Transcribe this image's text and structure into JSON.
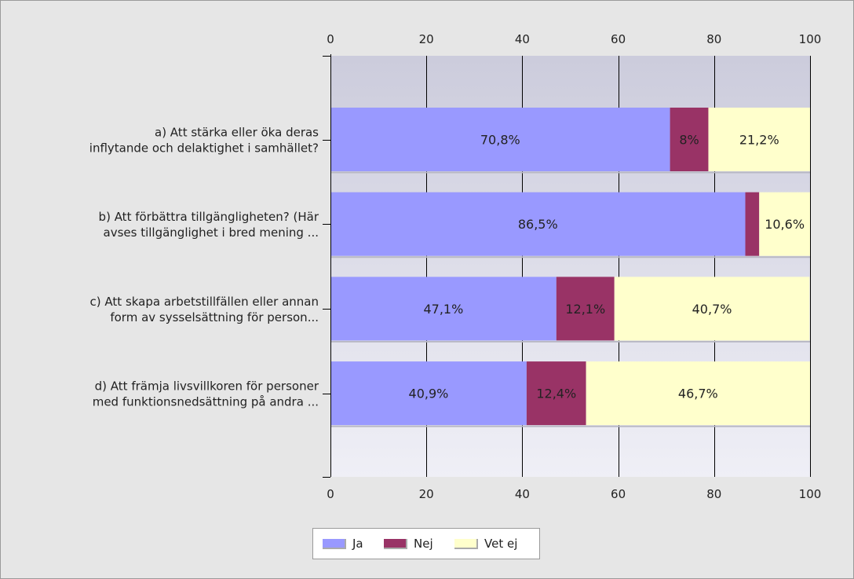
{
  "chart_data": {
    "type": "bar",
    "orientation": "horizontal",
    "stacked": true,
    "categories": [
      [
        "a) Att stärka eller öka deras",
        "inflytande och delaktighet i samhället?"
      ],
      [
        "b) Att förbättra tillgängligheten? (Här",
        "avses tillgänglighet i bred mening ..."
      ],
      [
        "c) Att skapa arbetstillfällen eller annan",
        "form av sysselsättning för person..."
      ],
      [
        "d) Att främja livsvillkoren för personer",
        "med funktionsnedsättning på andra ..."
      ]
    ],
    "series": [
      {
        "name": "Ja",
        "color": "#9999ff",
        "values": [
          70.8,
          86.5,
          47.1,
          40.9
        ],
        "labels": [
          "70,8%",
          "86,5%",
          "47,1%",
          "40,9%"
        ]
      },
      {
        "name": "Nej",
        "color": "#993366",
        "values": [
          8,
          2.9,
          12.1,
          12.4
        ],
        "labels": [
          "8%",
          "",
          "12,1%",
          "12,4%"
        ]
      },
      {
        "name": "Vet ej",
        "color": "#ffffcc",
        "values": [
          21.2,
          10.6,
          40.7,
          46.7
        ],
        "labels": [
          "21,2%",
          "10,6%",
          "40,7%",
          "46,7%"
        ]
      }
    ],
    "xlim": [
      0,
      100
    ],
    "xticks": [
      "0",
      "20",
      "40",
      "60",
      "80",
      "100"
    ],
    "axis_top": true,
    "axis_bottom": true,
    "grid": true,
    "legend_position": "bottom"
  }
}
